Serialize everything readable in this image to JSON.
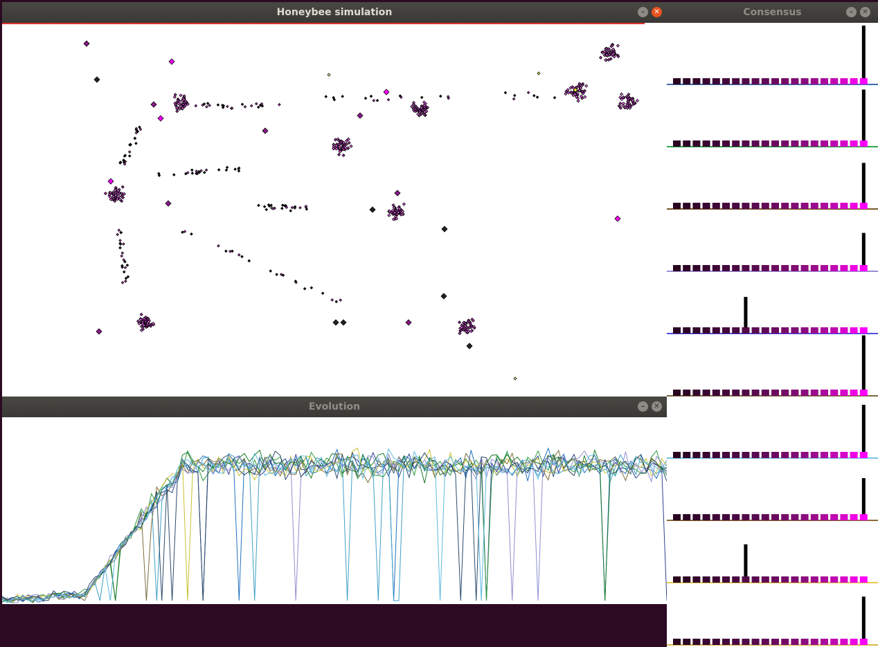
{
  "windows": {
    "sim": {
      "title": "Honeybee simulation",
      "progress_line_color": "#e0312d"
    },
    "evolution": {
      "title": "Evolution"
    },
    "consensus": {
      "title": "Consensus"
    }
  },
  "icons": {
    "minimize": "minimize-icon",
    "close": "close-icon"
  },
  "colors": {
    "desktop": "#2c0a22",
    "bee_magenta": "#ff00ff",
    "bee_dark": "#111111",
    "site_purple": "#8b1a8b"
  },
  "consensus_panels": [
    {
      "peak_index": 19,
      "peak_height": 0.95,
      "axis_color": "#3b6dab"
    },
    {
      "peak_index": 19,
      "peak_height": 0.92,
      "axis_color": "#2ea84a"
    },
    {
      "peak_index": 19,
      "peak_height": 0.72,
      "axis_color": "#7a5a2a"
    },
    {
      "peak_index": 19,
      "peak_height": 0.58,
      "axis_color": "#9b8cd6"
    },
    {
      "peak_index": 7,
      "peak_height": 0.55,
      "axis_color": "#4b4be0"
    },
    {
      "peak_index": 19,
      "peak_height": 0.98,
      "axis_color": "#7a6a3a"
    },
    {
      "peak_index": 19,
      "peak_height": 0.85,
      "axis_color": "#7ac0e6"
    },
    {
      "peak_index": 19,
      "peak_height": 0.65,
      "axis_color": "#8a6a3a"
    },
    {
      "peak_index": 7,
      "peak_height": 0.58,
      "axis_color": "#e6c84a"
    },
    {
      "peak_index": 19,
      "peak_height": 0.76,
      "axis_color": "#d6b84a"
    }
  ],
  "consensus_square_colors": [
    "#2a0420",
    "#2e0426",
    "#33052b",
    "#380631",
    "#3e0636",
    "#43073c",
    "#4a0842",
    "#520948",
    "#5a0a4f",
    "#620a57",
    "#6b0b5f",
    "#760b69",
    "#800c73",
    "#8c0c7f",
    "#9a0c8c",
    "#ab0a9c",
    "#c008b2",
    "#d806ca",
    "#ee03e4",
    "#ff00ff"
  ],
  "evolution_colors": [
    "#2b3f8f",
    "#1f6fbf",
    "#3fa0c8",
    "#2e9a3e",
    "#1a7a2a",
    "#c8c030",
    "#7a6a3a",
    "#8f8fd0",
    "#2a4a6a",
    "#5ab8e0"
  ]
}
